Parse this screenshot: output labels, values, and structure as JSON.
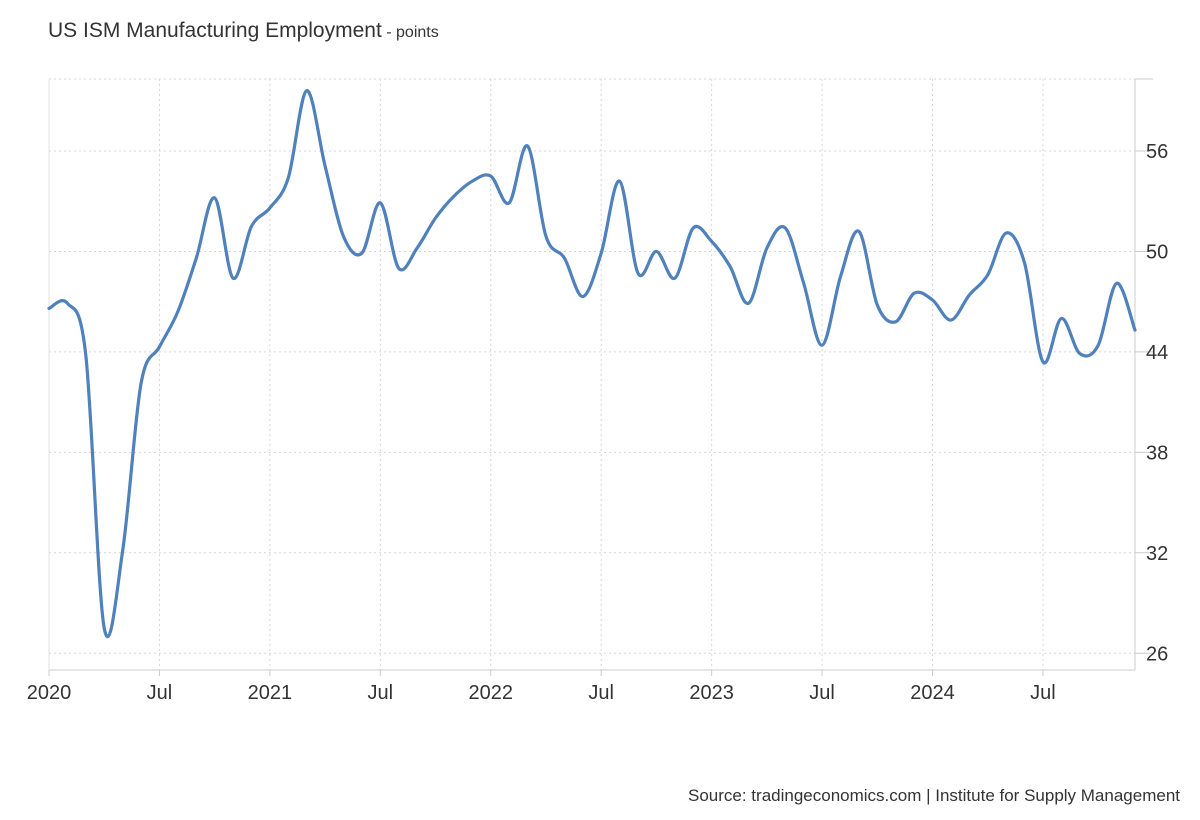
{
  "header": {
    "title": "US ISM Manufacturing Employment",
    "subtitle": "- points"
  },
  "footer": {
    "source": "Source: tradingeconomics.com | Institute for Supply Management"
  },
  "chart_data": {
    "type": "line",
    "title": "US ISM Manufacturing Employment",
    "subtitle": "points",
    "xlabel": "",
    "ylabel": "",
    "ylim": [
      25,
      60.3
    ],
    "xlim": [
      "2020-01",
      "2024-12"
    ],
    "y_ticks": [
      26,
      32,
      38,
      44,
      50,
      56
    ],
    "x_ticks": [
      {
        "label": "2020",
        "date": "2020-01"
      },
      {
        "label": "Jul",
        "date": "2020-07"
      },
      {
        "label": "2021",
        "date": "2021-01"
      },
      {
        "label": "Jul",
        "date": "2021-07"
      },
      {
        "label": "2022",
        "date": "2022-01"
      },
      {
        "label": "Jul",
        "date": "2022-07"
      },
      {
        "label": "2023",
        "date": "2023-01"
      },
      {
        "label": "Jul",
        "date": "2023-07"
      },
      {
        "label": "2024",
        "date": "2024-01"
      },
      {
        "label": "Jul",
        "date": "2024-07"
      }
    ],
    "grid": true,
    "y_axis_position": "right",
    "line_color": "#4f81bd",
    "series": [
      {
        "name": "",
        "points": [
          [
            "2020-01",
            46.6
          ],
          [
            "2020-02",
            46.9
          ],
          [
            "2020-03",
            43.8
          ],
          [
            "2020-04",
            27.5
          ],
          [
            "2020-05",
            32.1
          ],
          [
            "2020-06",
            42.1
          ],
          [
            "2020-07",
            44.3
          ],
          [
            "2020-08",
            46.4
          ],
          [
            "2020-09",
            49.6
          ],
          [
            "2020-10",
            53.2
          ],
          [
            "2020-11",
            48.4
          ],
          [
            "2020-12",
            51.5
          ],
          [
            "2021-01",
            52.6
          ],
          [
            "2021-02",
            54.4
          ],
          [
            "2021-03",
            59.6
          ],
          [
            "2021-04",
            55.1
          ],
          [
            "2021-05",
            50.9
          ],
          [
            "2021-06",
            49.9
          ],
          [
            "2021-07",
            52.9
          ],
          [
            "2021-08",
            49.0
          ],
          [
            "2021-09",
            50.2
          ],
          [
            "2021-10",
            52.0
          ],
          [
            "2021-11",
            53.3
          ],
          [
            "2021-12",
            54.2
          ],
          [
            "2022-01",
            54.5
          ],
          [
            "2022-02",
            52.9
          ],
          [
            "2022-03",
            56.3
          ],
          [
            "2022-04",
            50.9
          ],
          [
            "2022-05",
            49.6
          ],
          [
            "2022-06",
            47.3
          ],
          [
            "2022-07",
            49.9
          ],
          [
            "2022-08",
            54.2
          ],
          [
            "2022-09",
            48.7
          ],
          [
            "2022-10",
            50.0
          ],
          [
            "2022-11",
            48.4
          ],
          [
            "2022-12",
            51.4
          ],
          [
            "2023-01",
            50.6
          ],
          [
            "2023-02",
            49.1
          ],
          [
            "2023-03",
            46.9
          ],
          [
            "2023-04",
            50.2
          ],
          [
            "2023-05",
            51.4
          ],
          [
            "2023-06",
            48.1
          ],
          [
            "2023-07",
            44.4
          ],
          [
            "2023-08",
            48.5
          ],
          [
            "2023-09",
            51.2
          ],
          [
            "2023-10",
            46.8
          ],
          [
            "2023-11",
            45.8
          ],
          [
            "2023-12",
            47.5
          ],
          [
            "2024-01",
            47.1
          ],
          [
            "2024-02",
            45.9
          ],
          [
            "2024-03",
            47.4
          ],
          [
            "2024-04",
            48.6
          ],
          [
            "2024-05",
            51.1
          ],
          [
            "2024-06",
            49.3
          ],
          [
            "2024-07",
            43.4
          ],
          [
            "2024-08",
            46.0
          ],
          [
            "2024-09",
            43.9
          ],
          [
            "2024-10",
            44.4
          ],
          [
            "2024-11",
            48.1
          ],
          [
            "2024-12",
            45.3
          ]
        ]
      }
    ]
  }
}
